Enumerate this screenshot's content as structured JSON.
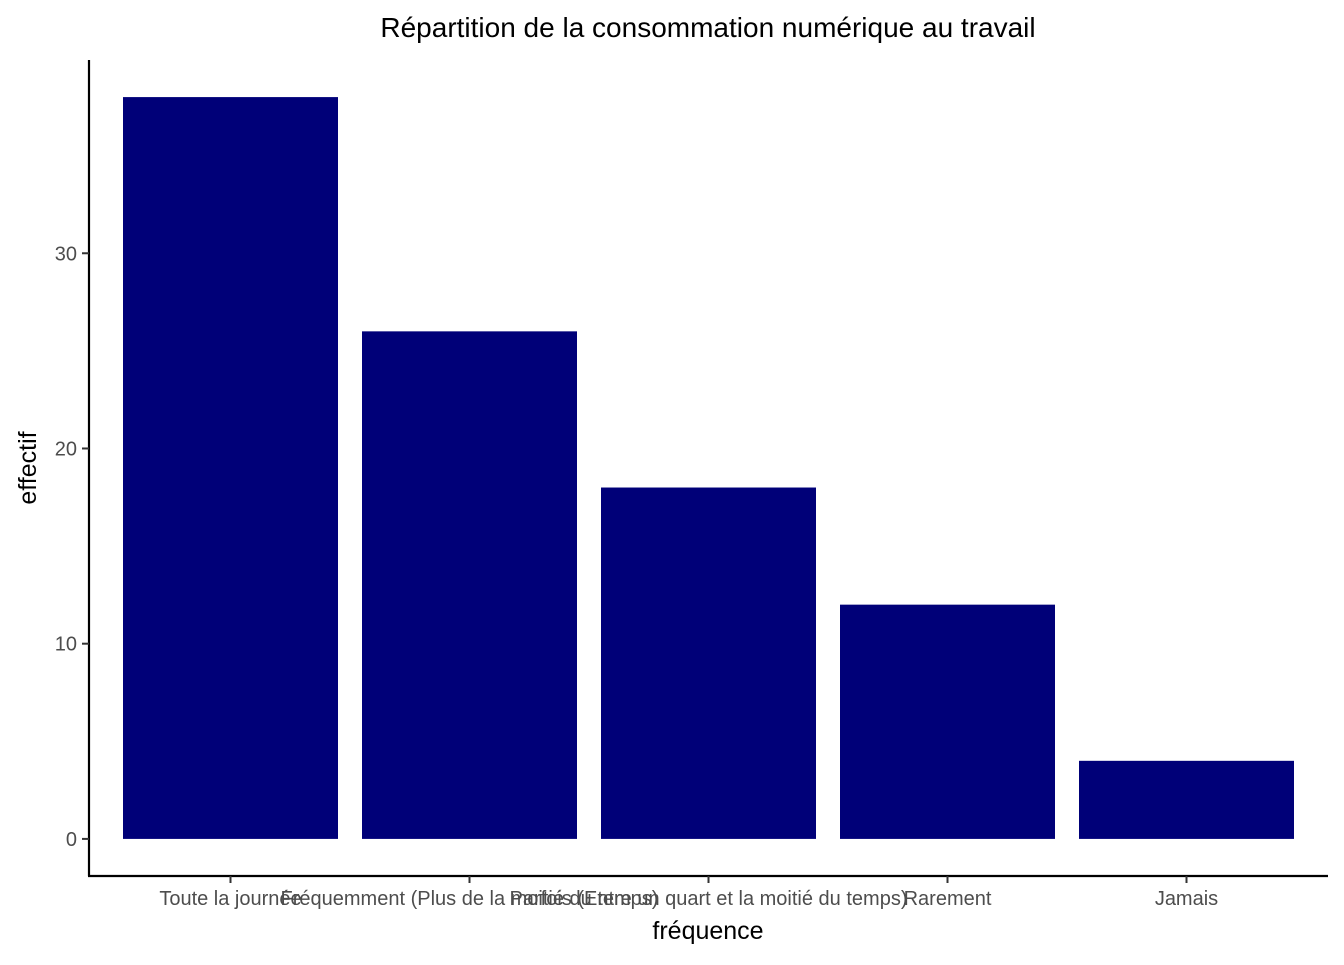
{
  "chart_data": {
    "type": "bar",
    "title": "Répartition de la consommation numérique au travail",
    "xlabel": "fréquence",
    "ylabel": "effectif",
    "categories": [
      "Toute la journée",
      "Fréquemment (Plus de la moitié du temps)",
      "Parfois (Entre un quart et la moitié du temps)",
      "Rarement",
      "Jamais"
    ],
    "values": [
      38,
      26,
      18,
      12,
      4
    ],
    "yticks": [
      0,
      10,
      20,
      30
    ],
    "ylim": [
      -1.9,
      39.9
    ],
    "grid": false,
    "legend": "none",
    "bar_color": "#000078"
  }
}
